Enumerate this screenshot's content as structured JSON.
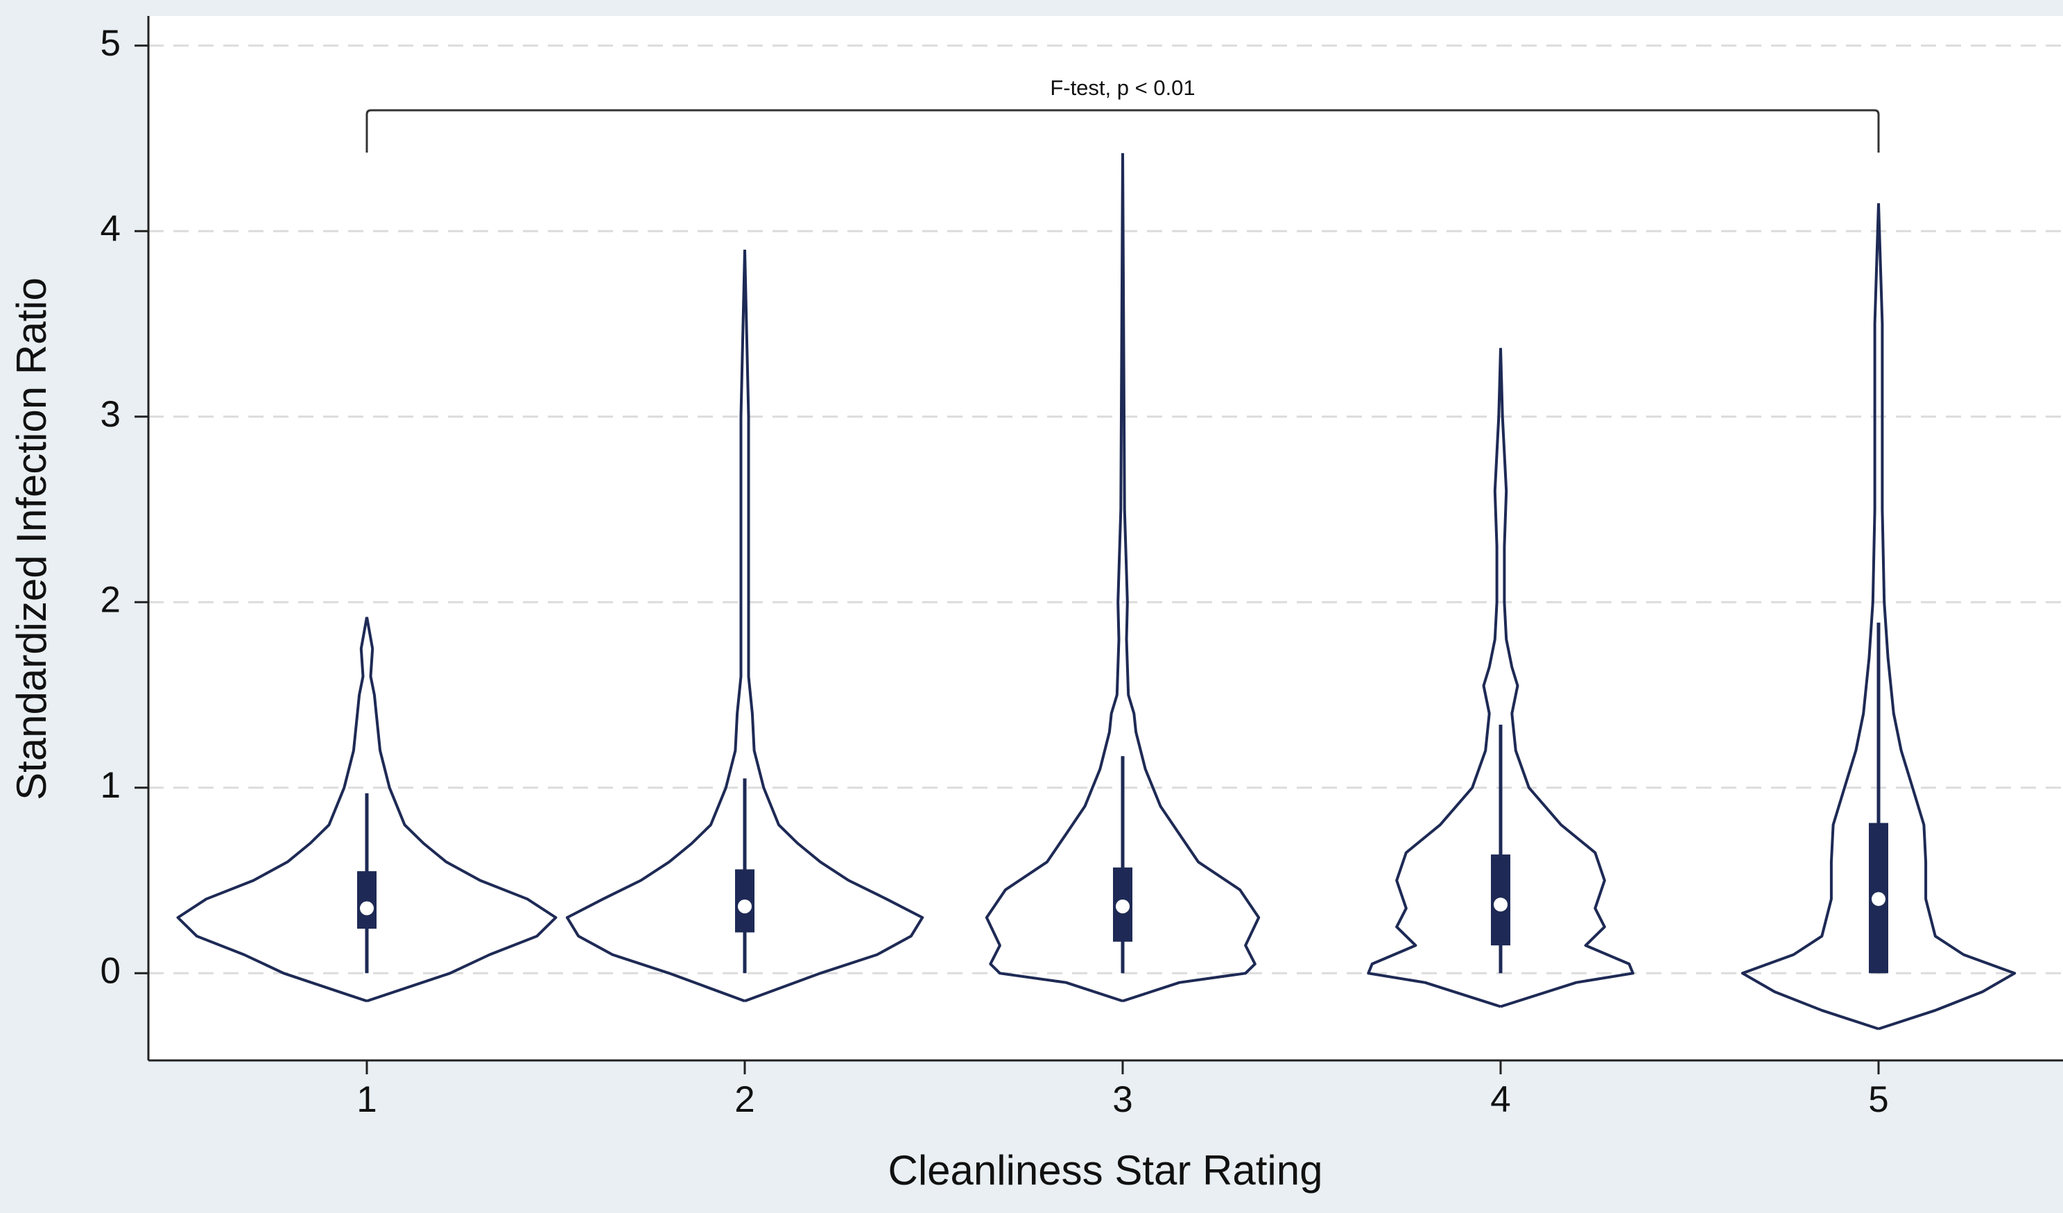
{
  "chart_data": {
    "type": "violin",
    "y_label": "Standardized Infection Ratio",
    "x_label": "Cleanliness Star Rating",
    "annotation": "F-test, p < 0.01",
    "categories": [
      "1",
      "2",
      "3",
      "4",
      "5"
    ],
    "ylim": [
      -0.47,
      5.16
    ],
    "yticks": [
      0,
      1,
      2,
      3,
      4,
      5
    ],
    "grid": true,
    "color": "#1e2a55",
    "violins": [
      {
        "whisker_low": 0,
        "q1": 0.24,
        "median": 0.35,
        "q3": 0.55,
        "whisker_high": 0.97,
        "density_y": [
          -0.15,
          0,
          0.1,
          0.2,
          0.3,
          0.4,
          0.5,
          0.6,
          0.7,
          0.8,
          1.0,
          1.2,
          1.4,
          1.5,
          1.6,
          1.75,
          1.92
        ],
        "density": [
          0,
          0.44,
          0.65,
          0.9,
          1.0,
          0.85,
          0.6,
          0.42,
          0.3,
          0.2,
          0.12,
          0.07,
          0.05,
          0.04,
          0.02,
          0.03,
          0
        ]
      },
      {
        "whisker_low": 0,
        "q1": 0.22,
        "median": 0.36,
        "q3": 0.56,
        "whisker_high": 1.05,
        "density_y": [
          -0.15,
          0,
          0.1,
          0.2,
          0.3,
          0.4,
          0.5,
          0.6,
          0.7,
          0.8,
          1.0,
          1.2,
          1.4,
          1.6,
          2.5,
          3.0,
          3.9
        ],
        "density": [
          0,
          0.4,
          0.7,
          0.88,
          0.94,
          0.75,
          0.55,
          0.4,
          0.28,
          0.18,
          0.1,
          0.05,
          0.04,
          0.02,
          0.02,
          0.02,
          0
        ]
      },
      {
        "whisker_low": 0,
        "q1": 0.17,
        "median": 0.36,
        "q3": 0.57,
        "whisker_high": 1.17,
        "density_y": [
          -0.15,
          -0.05,
          0,
          0.05,
          0.15,
          0.3,
          0.45,
          0.6,
          0.75,
          0.9,
          1.1,
          1.3,
          1.4,
          1.5,
          1.8,
          2.0,
          2.5,
          4.42
        ],
        "density": [
          0,
          0.3,
          0.65,
          0.7,
          0.65,
          0.72,
          0.62,
          0.4,
          0.3,
          0.2,
          0.12,
          0.07,
          0.06,
          0.03,
          0.02,
          0.025,
          0.01,
          0
        ]
      },
      {
        "whisker_low": 0,
        "q1": 0.15,
        "median": 0.37,
        "q3": 0.64,
        "whisker_high": 1.34,
        "density_y": [
          -0.18,
          -0.05,
          0,
          0.05,
          0.15,
          0.25,
          0.35,
          0.5,
          0.65,
          0.8,
          1.0,
          1.2,
          1.4,
          1.55,
          1.65,
          1.8,
          2.0,
          2.3,
          2.6,
          3.0,
          3.37
        ],
        "density": [
          0,
          0.4,
          0.7,
          0.68,
          0.45,
          0.55,
          0.5,
          0.55,
          0.5,
          0.32,
          0.15,
          0.08,
          0.06,
          0.09,
          0.06,
          0.03,
          0.02,
          0.02,
          0.03,
          0.01,
          0
        ]
      },
      {
        "whisker_low": 0,
        "q1": 0,
        "median": 0.4,
        "q3": 0.81,
        "whisker_high": 1.89,
        "density_y": [
          -0.3,
          -0.2,
          -0.1,
          0,
          0.1,
          0.2,
          0.4,
          0.6,
          0.8,
          1.0,
          1.2,
          1.4,
          1.7,
          2.0,
          2.5,
          3.0,
          3.5,
          4.15
        ],
        "density": [
          0,
          0.3,
          0.55,
          0.72,
          0.45,
          0.3,
          0.25,
          0.25,
          0.24,
          0.18,
          0.12,
          0.08,
          0.05,
          0.03,
          0.02,
          0.02,
          0.02,
          0
        ]
      }
    ]
  }
}
